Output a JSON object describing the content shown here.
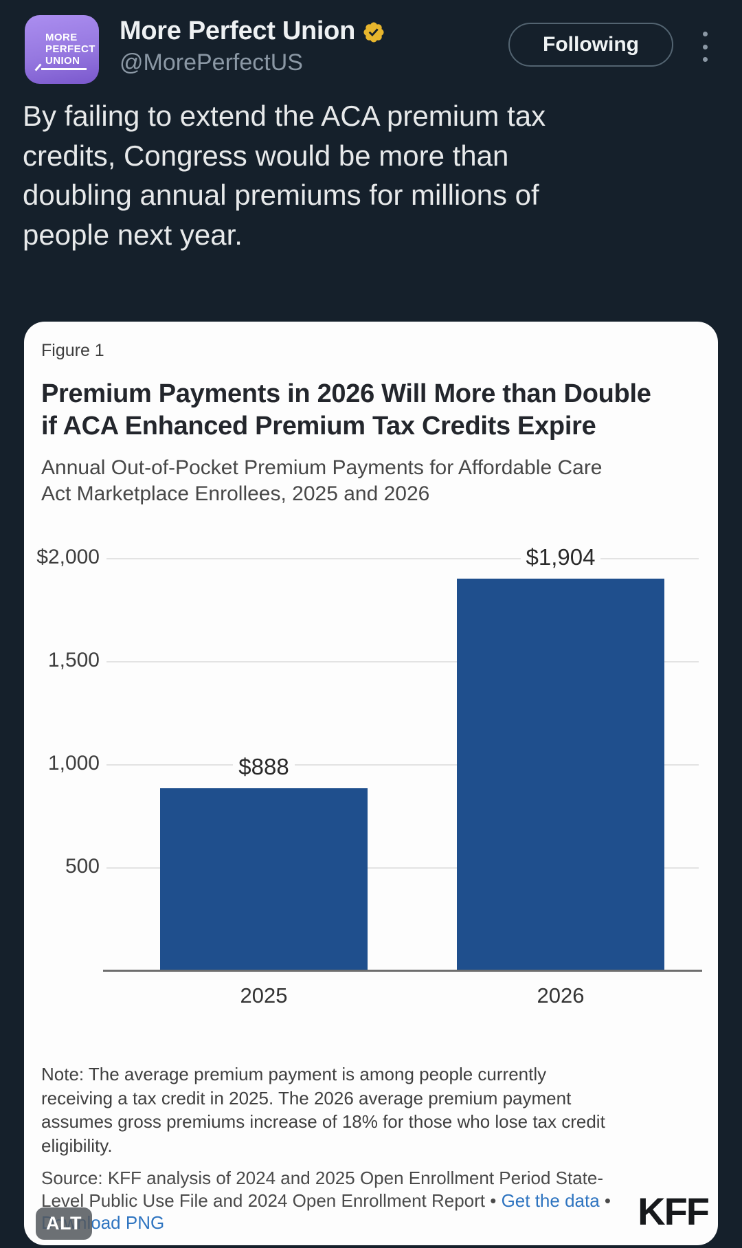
{
  "theme": {
    "background": "#15202b",
    "card_background": "#fdfdfd",
    "bar_blue": "#1f4f8d",
    "link_blue": "#2e74c0",
    "gold_badge": "#e8b62d",
    "avatar_purple_top": "#ab8ef0",
    "avatar_purple_bottom": "#7a58cd"
  },
  "header": {
    "avatar_lines": [
      "MORE",
      "PERFECT",
      "UNION"
    ],
    "display_name": "More Perfect Union",
    "verified_badge": "gold-verified-seal",
    "handle": "@MorePerfectUS",
    "follow_button_label": "Following"
  },
  "tweet": {
    "full_text": "By failing to extend the ACA premium tax credits, Congress would be more than doubling annual premiums for millions of people next year.",
    "lines": [
      "By failing to extend the ACA premium tax",
      "credits, Congress would be more than",
      "doubling annual premiums for millions of",
      "people next year."
    ]
  },
  "figure": {
    "figure_label": "Figure 1",
    "title_lines": [
      "Premium Payments in 2026 Will More than Double",
      "if ACA Enhanced Premium Tax Credits Expire"
    ],
    "subtitle_lines": [
      "Annual Out-of-Pocket Premium Payments for Affordable Care",
      "Act Marketplace Enrollees, 2025 and 2026"
    ],
    "note_lines": [
      "Note: The average premium payment is among people currently",
      "receiving a tax credit in 2025. The 2026 average premium payment",
      "assumes gross premiums increase of 18% for those who lose tax credit",
      "eligibility."
    ],
    "source": {
      "line1": "Source: KFF analysis of 2024 and 2025 Open Enrollment Period State-",
      "line2_prefix": "Level Public Use File and 2024 Open Enrollment Report • ",
      "line2_link": "Get the data",
      "line2_suffix": " •",
      "line3_link": "Download PNG"
    },
    "logo_text": "KFF",
    "alt_badge_label": "ALT"
  },
  "chart_data": {
    "type": "bar",
    "title": "Premium Payments in 2026 Will More than Double if ACA Enhanced Premium Tax Credits Expire",
    "subtitle": "Annual Out-of-Pocket Premium Payments for Affordable Care Act Marketplace Enrollees, 2025 and 2026",
    "categories": [
      "2025",
      "2026"
    ],
    "values": [
      888,
      1904
    ],
    "value_labels": [
      "$888",
      "$1,904"
    ],
    "ylim": [
      0,
      2000
    ],
    "y_ticks": [
      {
        "value": 2000,
        "label": "$2,000"
      },
      {
        "value": 1500,
        "label": "1,500"
      },
      {
        "value": 1000,
        "label": "1,000"
      },
      {
        "value": 500,
        "label": "500"
      }
    ],
    "bar_color": "#1f4f8d",
    "grid": "horizontal-only",
    "legend": "none"
  }
}
